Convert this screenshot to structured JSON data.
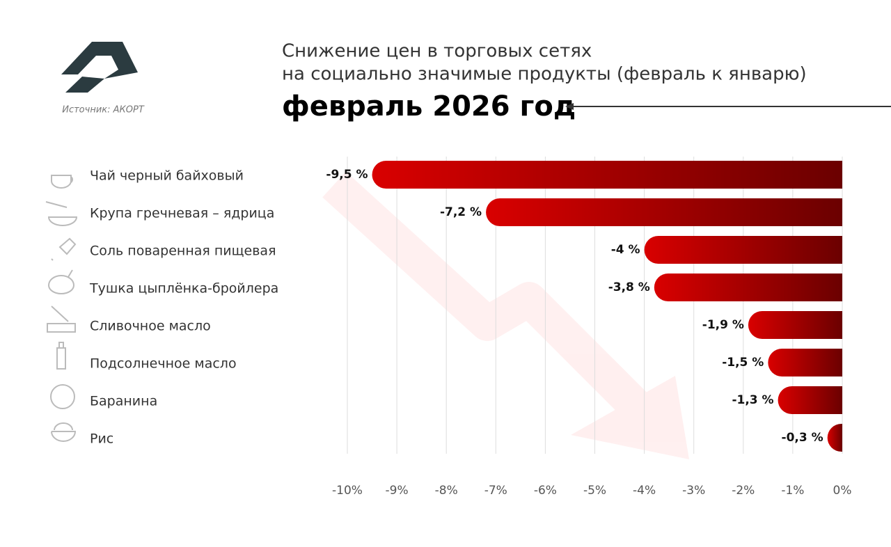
{
  "chart_data": {
    "type": "bar",
    "orientation": "horizontal",
    "title": [
      "Снижение цен в торговых сетях",
      "на социально значимые продукты (февраль к январю)"
    ],
    "subtitle": "февраль 2026 год",
    "source": "Источник: АКОРТ",
    "categories": [
      "Чай черный байховый",
      "Крупа гречневая – ядрица",
      "Соль поваренная пищевая",
      "Тушка цыплёнка-бройлера",
      "Сливочное масло",
      "Подсолнечное масло",
      "Баранина",
      "Рис"
    ],
    "values": [
      -9.5,
      -7.2,
      -4,
      -3.8,
      -1.9,
      -1.5,
      -1.3,
      -0.3
    ],
    "value_labels": [
      "-9,5 %",
      "-7,2 %",
      "-4 %",
      "-3,8 %",
      "-1,9 %",
      "-1,5 %",
      "-1,3 %",
      "-0,3 %"
    ],
    "gradient": [
      "#d90000",
      "#6b0000"
    ],
    "xlim": [
      -10,
      0
    ],
    "xticks": [
      {
        "value": -10,
        "label": "-10%"
      },
      {
        "value": -9,
        "label": "-9%"
      },
      {
        "value": -8,
        "label": "-8%"
      },
      {
        "value": -7,
        "label": "-7%"
      },
      {
        "value": -6,
        "label": "-6%"
      },
      {
        "value": -5,
        "label": "-5%"
      },
      {
        "value": -4,
        "label": "-4%"
      },
      {
        "value": -3,
        "label": "-3%"
      },
      {
        "value": -2,
        "label": "-2%"
      },
      {
        "value": -1,
        "label": "-1%"
      },
      {
        "value": 0,
        "label": "0%"
      }
    ],
    "grid": true
  }
}
